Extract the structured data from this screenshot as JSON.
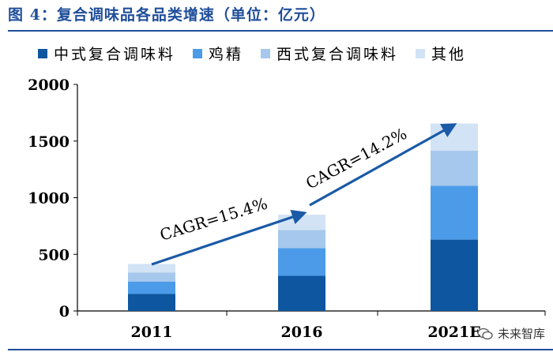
{
  "title": "图 4：复合调味品各品类增速（单位：亿元）",
  "watermark": "未来智库",
  "chart_data": {
    "type": "bar",
    "stacked": true,
    "title": "图 4：复合调味品各品类增速（单位：亿元）",
    "unit": "亿元",
    "categories": [
      "2011",
      "2016",
      "2021E"
    ],
    "series": [
      {
        "name": "中式复合调味料",
        "color": "#0e56a0",
        "values": [
          150,
          310,
          630
        ]
      },
      {
        "name": "鸡精",
        "color": "#4b9be8",
        "values": [
          110,
          245,
          475
        ]
      },
      {
        "name": "西式复合调味料",
        "color": "#a6c8ec",
        "values": [
          80,
          160,
          310
        ]
      },
      {
        "name": "其他",
        "color": "#d2e3f5",
        "values": [
          75,
          135,
          240
        ]
      }
    ],
    "ylim": [
      0,
      2000
    ],
    "yticks": [
      "0",
      "500",
      "1000",
      "1500",
      "2000"
    ],
    "annotations": [
      {
        "text": "CAGR=15.4%",
        "from": "2011",
        "to": "2016"
      },
      {
        "text": "CAGR=14.2%",
        "from": "2016",
        "to": "2021E"
      }
    ],
    "legend_position": "top",
    "grid": false
  }
}
